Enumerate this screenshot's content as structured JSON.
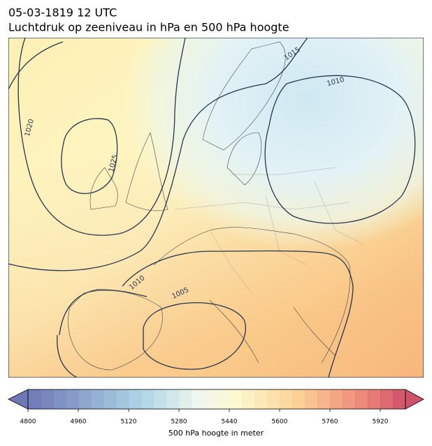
{
  "header": {
    "title": "05-03-1819 12 UTC",
    "subtitle": "Luchtdruk op zeeniveau in hPa en 500 hPa hoogte"
  },
  "map": {
    "contour_labels": [
      "1020",
      "1025",
      "1015",
      "1010",
      "1010",
      "1005"
    ]
  },
  "colorbar": {
    "label": "500 hPa hoogte in meter",
    "lim": [
      4800,
      6000
    ],
    "ticks": [
      4800,
      4960,
      5120,
      5280,
      5440,
      5600,
      5760,
      5920
    ]
  }
}
